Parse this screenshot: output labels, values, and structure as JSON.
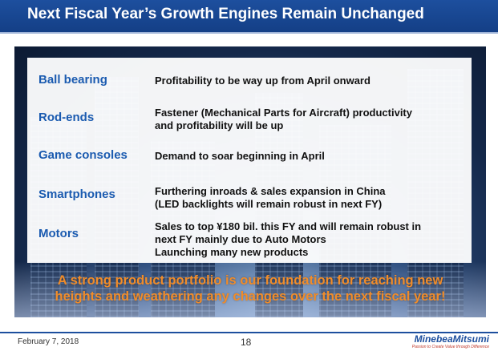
{
  "slide": {
    "title": "Next Fiscal Year’s Growth Engines Remain Unchanged",
    "rows": [
      {
        "category": "Ball bearing",
        "lines": [
          "Profitability to be way up from April onward"
        ]
      },
      {
        "category": "Rod-ends",
        "lines": [
          "Fastener (Mechanical Parts for Aircraft) productivity",
          "and profitability will be up"
        ]
      },
      {
        "category": "Game consoles",
        "lines": [
          "Demand to soar beginning in April"
        ]
      },
      {
        "category": "Smartphones",
        "lines": [
          "Furthering inroads & sales expansion in China",
          "(LED backlights will remain robust in next FY)"
        ]
      },
      {
        "category": "Motors",
        "lines": [
          "Sales to top ¥180 bil. this FY and will remain robust in",
          "next FY mainly due to Auto Motors",
          "Launching many new products"
        ]
      }
    ],
    "tagline": [
      "A strong product portfolio is our foundation for reaching new",
      "heights and weathering any changes over the next fiscal year!"
    ]
  },
  "footer": {
    "date": "February 7, 2018",
    "page_number": "18",
    "logo": "MinebeaMitsumi",
    "logo_tagline": "Passion to Create Value through Difference"
  },
  "colors": {
    "title_bar": "#1d4f9e",
    "category_text": "#1b5bb0",
    "tagline_text": "#f08c2a"
  }
}
